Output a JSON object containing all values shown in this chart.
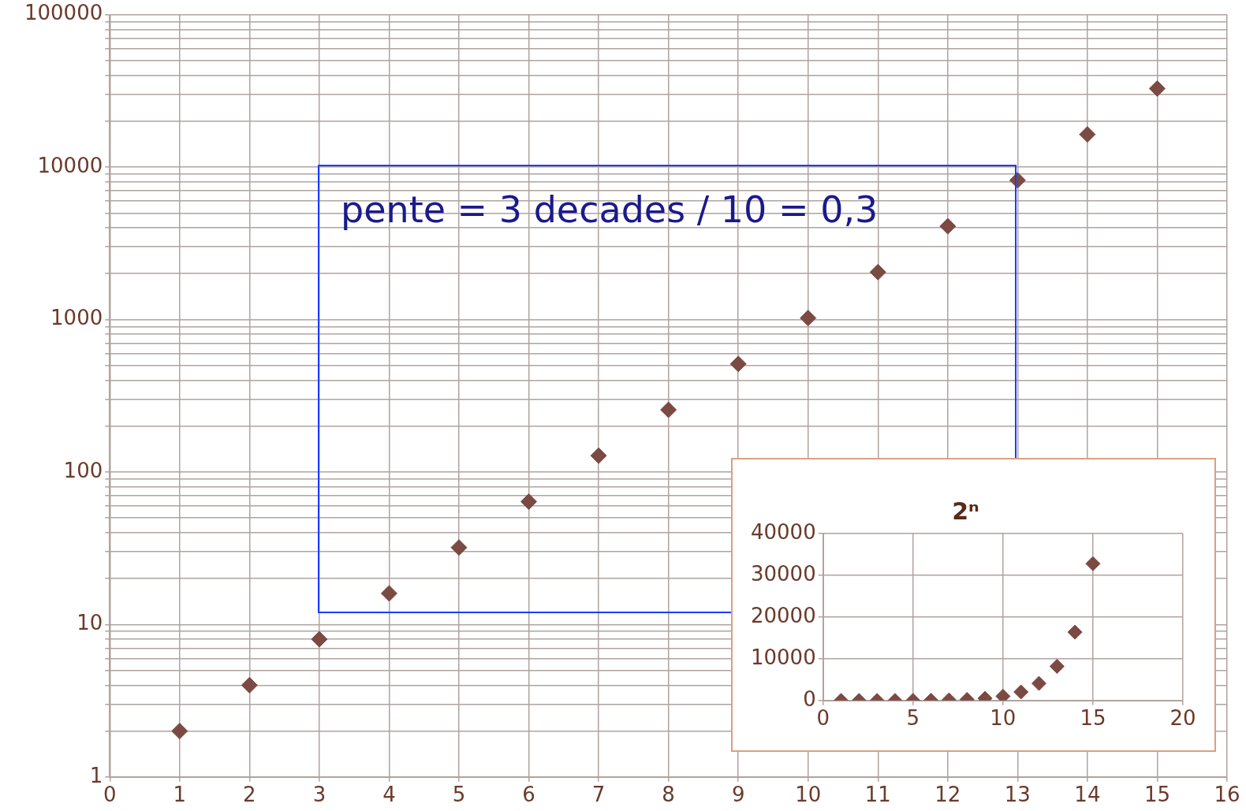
{
  "chart_data": [
    {
      "type": "scatter",
      "x": [
        1,
        2,
        3,
        4,
        5,
        6,
        7,
        8,
        9,
        10,
        11,
        12,
        13,
        14,
        15
      ],
      "values": [
        2,
        4,
        8,
        16,
        32,
        64,
        128,
        256,
        512,
        1024,
        2048,
        4096,
        8192,
        16384,
        32768
      ],
      "color": "#7b4a42",
      "marker": "diamond",
      "log": "y",
      "grid": true,
      "xlim": [
        0,
        16
      ],
      "xticks": [
        0,
        1,
        2,
        3,
        4,
        5,
        6,
        7,
        8,
        9,
        10,
        11,
        12,
        13,
        14,
        15,
        16
      ],
      "ylim": [
        1,
        100000
      ],
      "yticks": [
        1,
        {
          "value": 2,
          "label": null
        },
        {
          "value": 3,
          "label": null
        },
        {
          "value": 4,
          "label": null
        },
        {
          "value": 5,
          "label": null
        },
        {
          "value": 6,
          "label": null
        },
        {
          "value": 7,
          "label": null
        },
        {
          "value": 8,
          "label": null
        },
        {
          "value": 9,
          "label": null
        },
        10,
        {
          "value": 20,
          "label": null
        },
        {
          "value": 30,
          "label": null
        },
        {
          "value": 40,
          "label": null
        },
        {
          "value": 50,
          "label": null
        },
        {
          "value": 60,
          "label": null
        },
        {
          "value": 70,
          "label": null
        },
        {
          "value": 80,
          "label": null
        },
        {
          "value": 90,
          "label": null
        },
        100,
        {
          "value": 200,
          "label": null
        },
        {
          "value": 300,
          "label": null
        },
        {
          "value": 400,
          "label": null
        },
        {
          "value": 500,
          "label": null
        },
        {
          "value": 600,
          "label": null
        },
        {
          "value": 700,
          "label": null
        },
        {
          "value": 800,
          "label": null
        },
        {
          "value": 900,
          "label": null
        },
        1000,
        {
          "value": 2000,
          "label": null
        },
        {
          "value": 3000,
          "label": null
        },
        {
          "value": 4000,
          "label": null
        },
        {
          "value": 5000,
          "label": null
        },
        {
          "value": 6000,
          "label": null
        },
        {
          "value": 7000,
          "label": null
        },
        {
          "value": 8000,
          "label": null
        },
        {
          "value": 9000,
          "label": null
        },
        10000,
        {
          "value": 20000,
          "label": null
        },
        {
          "value": 30000,
          "label": null
        },
        {
          "value": 40000,
          "label": null
        },
        {
          "value": 50000,
          "label": null
        },
        {
          "value": 60000,
          "label": null
        },
        {
          "value": 70000,
          "label": null
        },
        {
          "value": 80000,
          "label": null
        },
        {
          "value": 90000,
          "label": null
        },
        100000
      ],
      "annotations": [
        "pente = 3 decades / 10 = 0,3"
      ]
    },
    {
      "type": "scatter",
      "title": "2ⁿ",
      "x": [
        1,
        2,
        3,
        4,
        5,
        6,
        7,
        8,
        9,
        10,
        11,
        12,
        13,
        14,
        15
      ],
      "values": [
        2,
        4,
        8,
        16,
        32,
        64,
        128,
        256,
        512,
        1024,
        2048,
        4096,
        8192,
        16384,
        32768
      ],
      "color": "#7b4a42",
      "marker": "diamond",
      "grid": true,
      "xlim": [
        0,
        20
      ],
      "xticks": [
        0,
        5,
        10,
        15,
        20
      ],
      "ylim": [
        0,
        40000
      ],
      "yticks": [
        0,
        10000,
        20000,
        30000,
        40000
      ]
    }
  ]
}
